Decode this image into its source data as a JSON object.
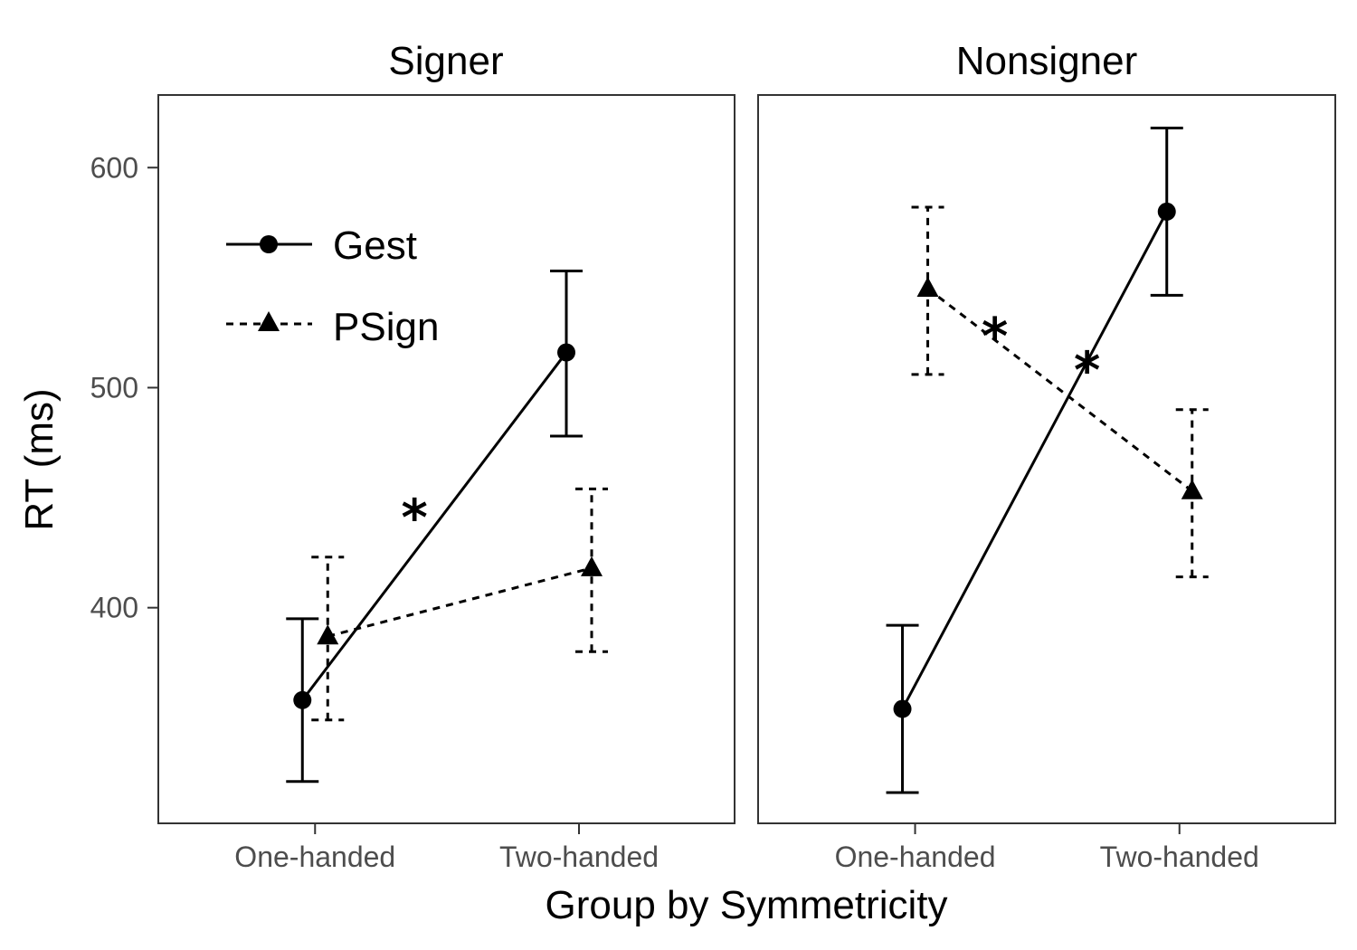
{
  "chart_data": {
    "type": "line",
    "xlabel": "Group by Symmetricity",
    "ylabel": "RT (ms)",
    "categories": [
      "One-handed",
      "Two-handed"
    ],
    "yticks": [
      400,
      500,
      600
    ],
    "ylim": [
      302,
      633
    ],
    "legend": {
      "placement": "top-left",
      "entries": [
        {
          "name": "Gest",
          "line": "solid",
          "marker": "circle"
        },
        {
          "name": "PSign",
          "line": "dashed",
          "marker": "triangle"
        }
      ]
    },
    "colors": {
      "ink": "#000000",
      "tick_text": "#4d4d4d"
    },
    "panels": [
      {
        "title": "Signer",
        "series": [
          {
            "name": "Gest",
            "values": [
              358,
              516
            ],
            "lower": [
              321,
              478
            ],
            "upper": [
              395,
              553
            ]
          },
          {
            "name": "PSign",
            "values": [
              387,
              418
            ],
            "lower": [
              349,
              380
            ],
            "upper": [
              423,
              454
            ]
          }
        ],
        "annotations": [
          {
            "text": "*",
            "near_series": "Gest"
          }
        ]
      },
      {
        "title": "Nonsigner",
        "series": [
          {
            "name": "Gest",
            "values": [
              354,
              580
            ],
            "lower": [
              316,
              542
            ],
            "upper": [
              392,
              618
            ]
          },
          {
            "name": "PSign",
            "values": [
              545,
              453
            ],
            "lower": [
              506,
              414
            ],
            "upper": [
              582,
              490
            ]
          }
        ],
        "annotations": [
          {
            "text": "*",
            "near_series": "PSign"
          },
          {
            "text": "*",
            "near_series": "Gest"
          }
        ]
      }
    ]
  }
}
